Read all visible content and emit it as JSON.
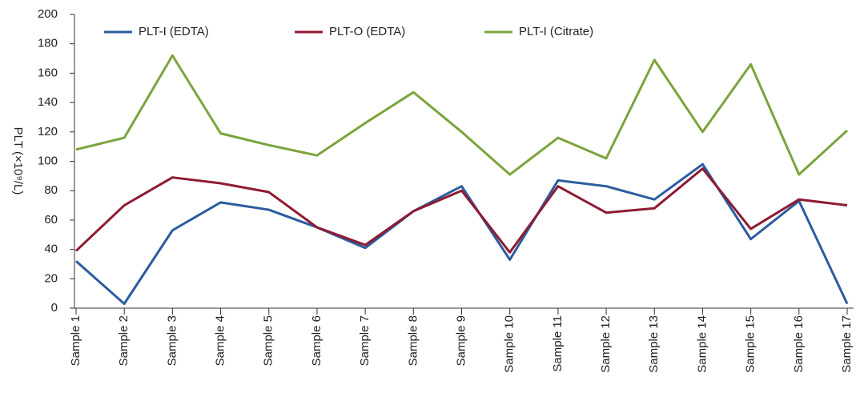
{
  "chart_data": {
    "type": "line",
    "y_label": "PLT (×10⁹/L)",
    "categories": [
      "Sample 1",
      "Sample 2",
      "Sample 3",
      "Sample 4",
      "Sample 5",
      "Sample 6",
      "Sample 7",
      "Sample 8",
      "Sample 9",
      "Sample 10",
      "Sample 11",
      "Sample 12",
      "Sample 13",
      "Sample 14",
      "Sample 15",
      "Sample 16",
      "Sample 17"
    ],
    "series": [
      {
        "name": "PLT-I (EDTA)",
        "color": "#2b5c9f",
        "values": [
          32,
          3,
          53,
          72,
          67,
          55,
          41,
          66,
          83,
          33,
          87,
          83,
          74,
          98,
          47,
          73,
          3
        ]
      },
      {
        "name": "PLT-O (EDTA)",
        "color": "#8e1b32",
        "values": [
          39,
          70,
          89,
          85,
          79,
          55,
          43,
          66,
          80,
          38,
          83,
          65,
          68,
          95,
          54,
          74,
          70
        ]
      },
      {
        "name": "PLT-I (Citrate)",
        "color": "#7ba43c",
        "values": [
          108,
          116,
          172,
          119,
          111,
          104,
          126,
          147,
          120,
          91,
          116,
          102,
          169,
          120,
          166,
          91,
          121
        ]
      }
    ],
    "ylim": [
      0,
      200
    ],
    "yticks": [
      0,
      20,
      40,
      60,
      80,
      100,
      120,
      140,
      160,
      180,
      200
    ],
    "grid": false
  }
}
